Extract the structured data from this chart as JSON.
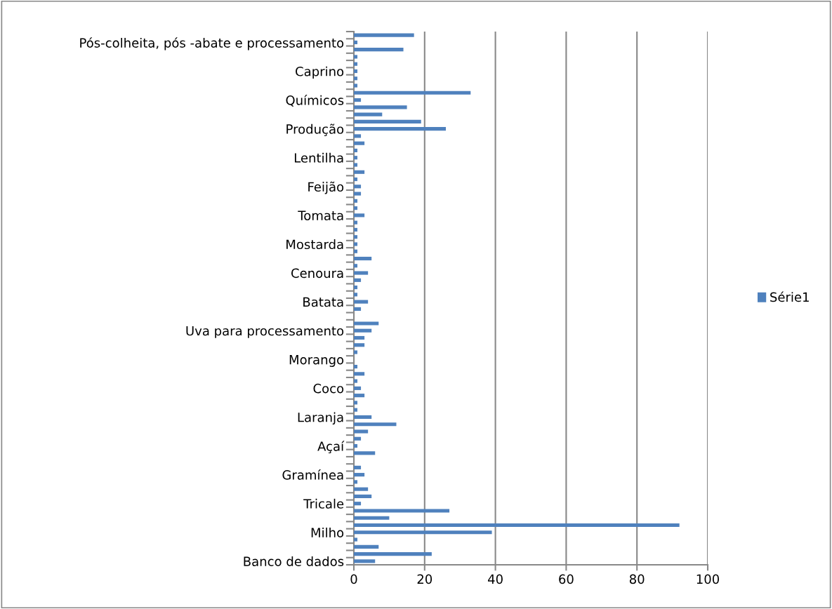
{
  "chart_data": {
    "type": "bar",
    "orientation": "horizontal",
    "categories": [
      null,
      "Pós-colheita, pós -abate e processamento",
      null,
      null,
      null,
      "Caprino",
      null,
      null,
      null,
      "Químicos",
      null,
      null,
      null,
      "Produção",
      null,
      null,
      null,
      "Lentilha",
      null,
      null,
      null,
      "Feijão",
      null,
      null,
      null,
      "Tomata",
      null,
      null,
      null,
      "Mostarda",
      null,
      null,
      null,
      "Cenoura",
      null,
      null,
      null,
      "Batata",
      null,
      null,
      null,
      "Uva para processamento",
      null,
      null,
      null,
      "Morango",
      null,
      null,
      null,
      "Coco",
      null,
      null,
      null,
      "Laranja",
      null,
      null,
      null,
      "Açaí",
      null,
      null,
      null,
      "Gramínea",
      null,
      null,
      null,
      "Tricale",
      null,
      null,
      null,
      "Milho",
      null,
      null,
      null,
      "Banco de dados"
    ],
    "series": [
      {
        "name": "Série1",
        "color": "#4f81bd",
        "values": [
          17,
          1,
          14,
          1,
          1,
          1,
          1,
          1,
          33,
          2,
          15,
          8,
          19,
          26,
          2,
          3,
          1,
          1,
          1,
          3,
          1,
          2,
          2,
          1,
          1,
          3,
          1,
          1,
          1,
          1,
          1,
          5,
          1,
          4,
          2,
          1,
          1,
          4,
          2,
          0,
          7,
          5,
          3,
          3,
          1,
          0,
          1,
          3,
          1,
          2,
          3,
          1,
          1,
          5,
          12,
          4,
          2,
          1,
          6,
          0,
          2,
          3,
          1,
          4,
          5,
          2,
          27,
          10,
          92,
          39,
          1,
          7,
          22,
          6
        ]
      }
    ],
    "xlim": [
      0,
      100
    ],
    "xticks": [
      0,
      20,
      40,
      60,
      80,
      100
    ],
    "grid": "x",
    "legend": "right"
  }
}
